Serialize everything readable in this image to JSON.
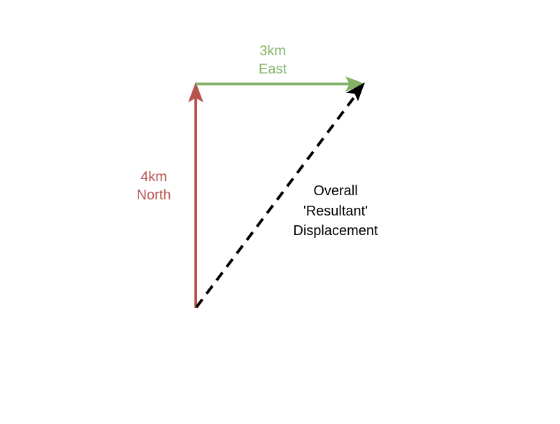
{
  "diagram": {
    "title": "",
    "colors": {
      "east": "#82b366",
      "north": "#b85450",
      "resultant": "#000000",
      "background": "#ffffff"
    },
    "vectors": [
      {
        "id": "north",
        "magnitude_km": 4,
        "direction": "North",
        "style": "solid",
        "label_lines": [
          "4km",
          "North"
        ]
      },
      {
        "id": "east",
        "magnitude_km": 3,
        "direction": "East",
        "style": "solid",
        "label_lines": [
          "3km",
          "East"
        ]
      },
      {
        "id": "resultant",
        "style": "dashed",
        "label_lines": [
          "Overall",
          "'Resultant'",
          "Displacement"
        ]
      }
    ]
  }
}
